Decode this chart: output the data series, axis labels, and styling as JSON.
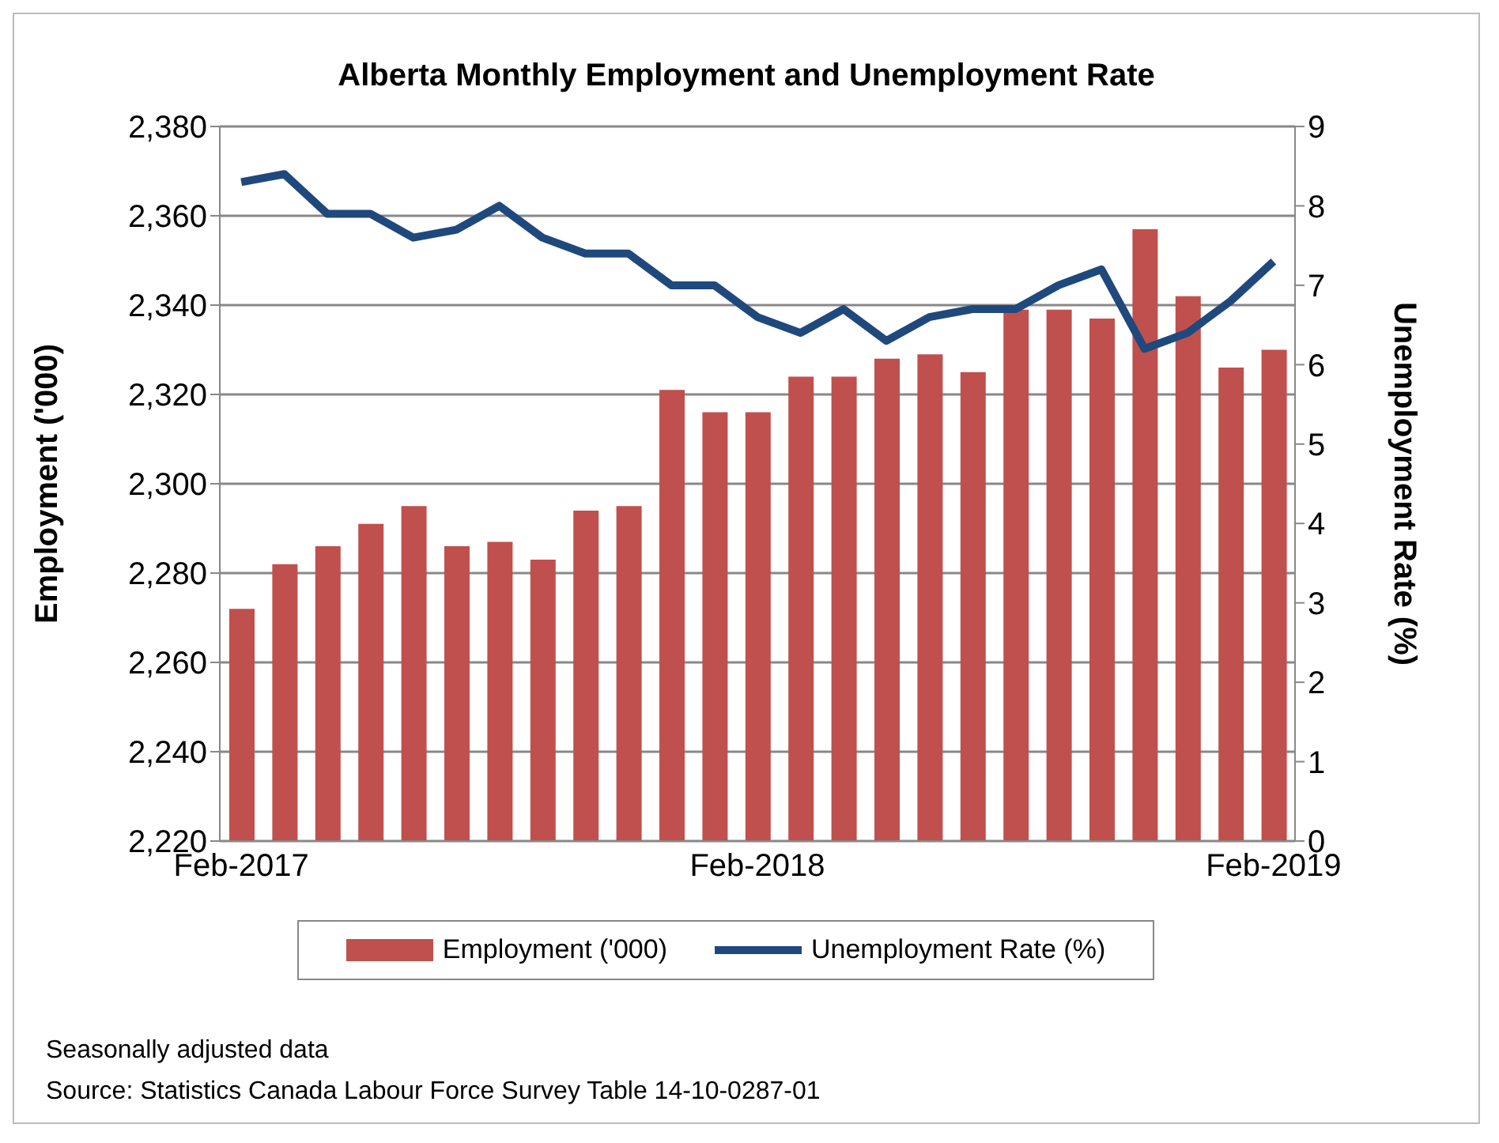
{
  "chart_data": {
    "type": "bar",
    "title": "Alberta Monthly Employment and Unemployment Rate",
    "ylabel": "Employment ('000)",
    "y2label": "Unemployment Rate (%)",
    "categories": [
      "Feb-2017",
      null,
      null,
      null,
      null,
      null,
      null,
      null,
      null,
      null,
      null,
      null,
      "Feb-2018",
      null,
      null,
      null,
      null,
      null,
      null,
      null,
      null,
      null,
      null,
      null,
      "Feb-2019"
    ],
    "series": [
      {
        "name": "Employment ('000)",
        "color": "#c0504d",
        "values": [
          2272,
          2282,
          2286,
          2291,
          2295,
          2286,
          2287,
          2283,
          2294,
          2295,
          2321,
          2316,
          2316,
          2324,
          2324,
          2328,
          2329,
          2325,
          2339,
          2339,
          2337,
          2357,
          2342,
          2326,
          2330
        ]
      },
      {
        "name": "Unemployment Rate (%)",
        "type": "line",
        "axis": "y2",
        "color": "#1f497d",
        "values": [
          8.3,
          8.4,
          7.9,
          7.9,
          7.6,
          7.7,
          8.0,
          7.6,
          7.4,
          7.4,
          7.0,
          7.0,
          6.6,
          6.4,
          6.7,
          6.3,
          6.6,
          6.7,
          6.7,
          7.0,
          7.2,
          6.2,
          6.4,
          6.8,
          7.3
        ]
      }
    ],
    "ylim": [
      2220,
      2380
    ],
    "yticks": [
      {
        "value": 2220,
        "label": "2,220"
      },
      {
        "value": 2240,
        "label": "2,240"
      },
      {
        "value": 2260,
        "label": "2,260"
      },
      {
        "value": 2280,
        "label": "2,280"
      },
      {
        "value": 2300,
        "label": "2,300"
      },
      {
        "value": 2320,
        "label": "2,320"
      },
      {
        "value": 2340,
        "label": "2,340"
      },
      {
        "value": 2360,
        "label": "2,360"
      },
      {
        "value": 2380,
        "label": "2,380"
      }
    ],
    "y2lim": [
      0,
      9
    ],
    "y2ticks": [
      0,
      1,
      2,
      3,
      4,
      5,
      6,
      7,
      8,
      9
    ],
    "grid": "y",
    "legend": "bottom",
    "marker": "none",
    "annotations": [
      "Seasonally adjusted data",
      "Source: Statistics Canada Labour Force Survey Table 14-10-0287-01"
    ]
  }
}
